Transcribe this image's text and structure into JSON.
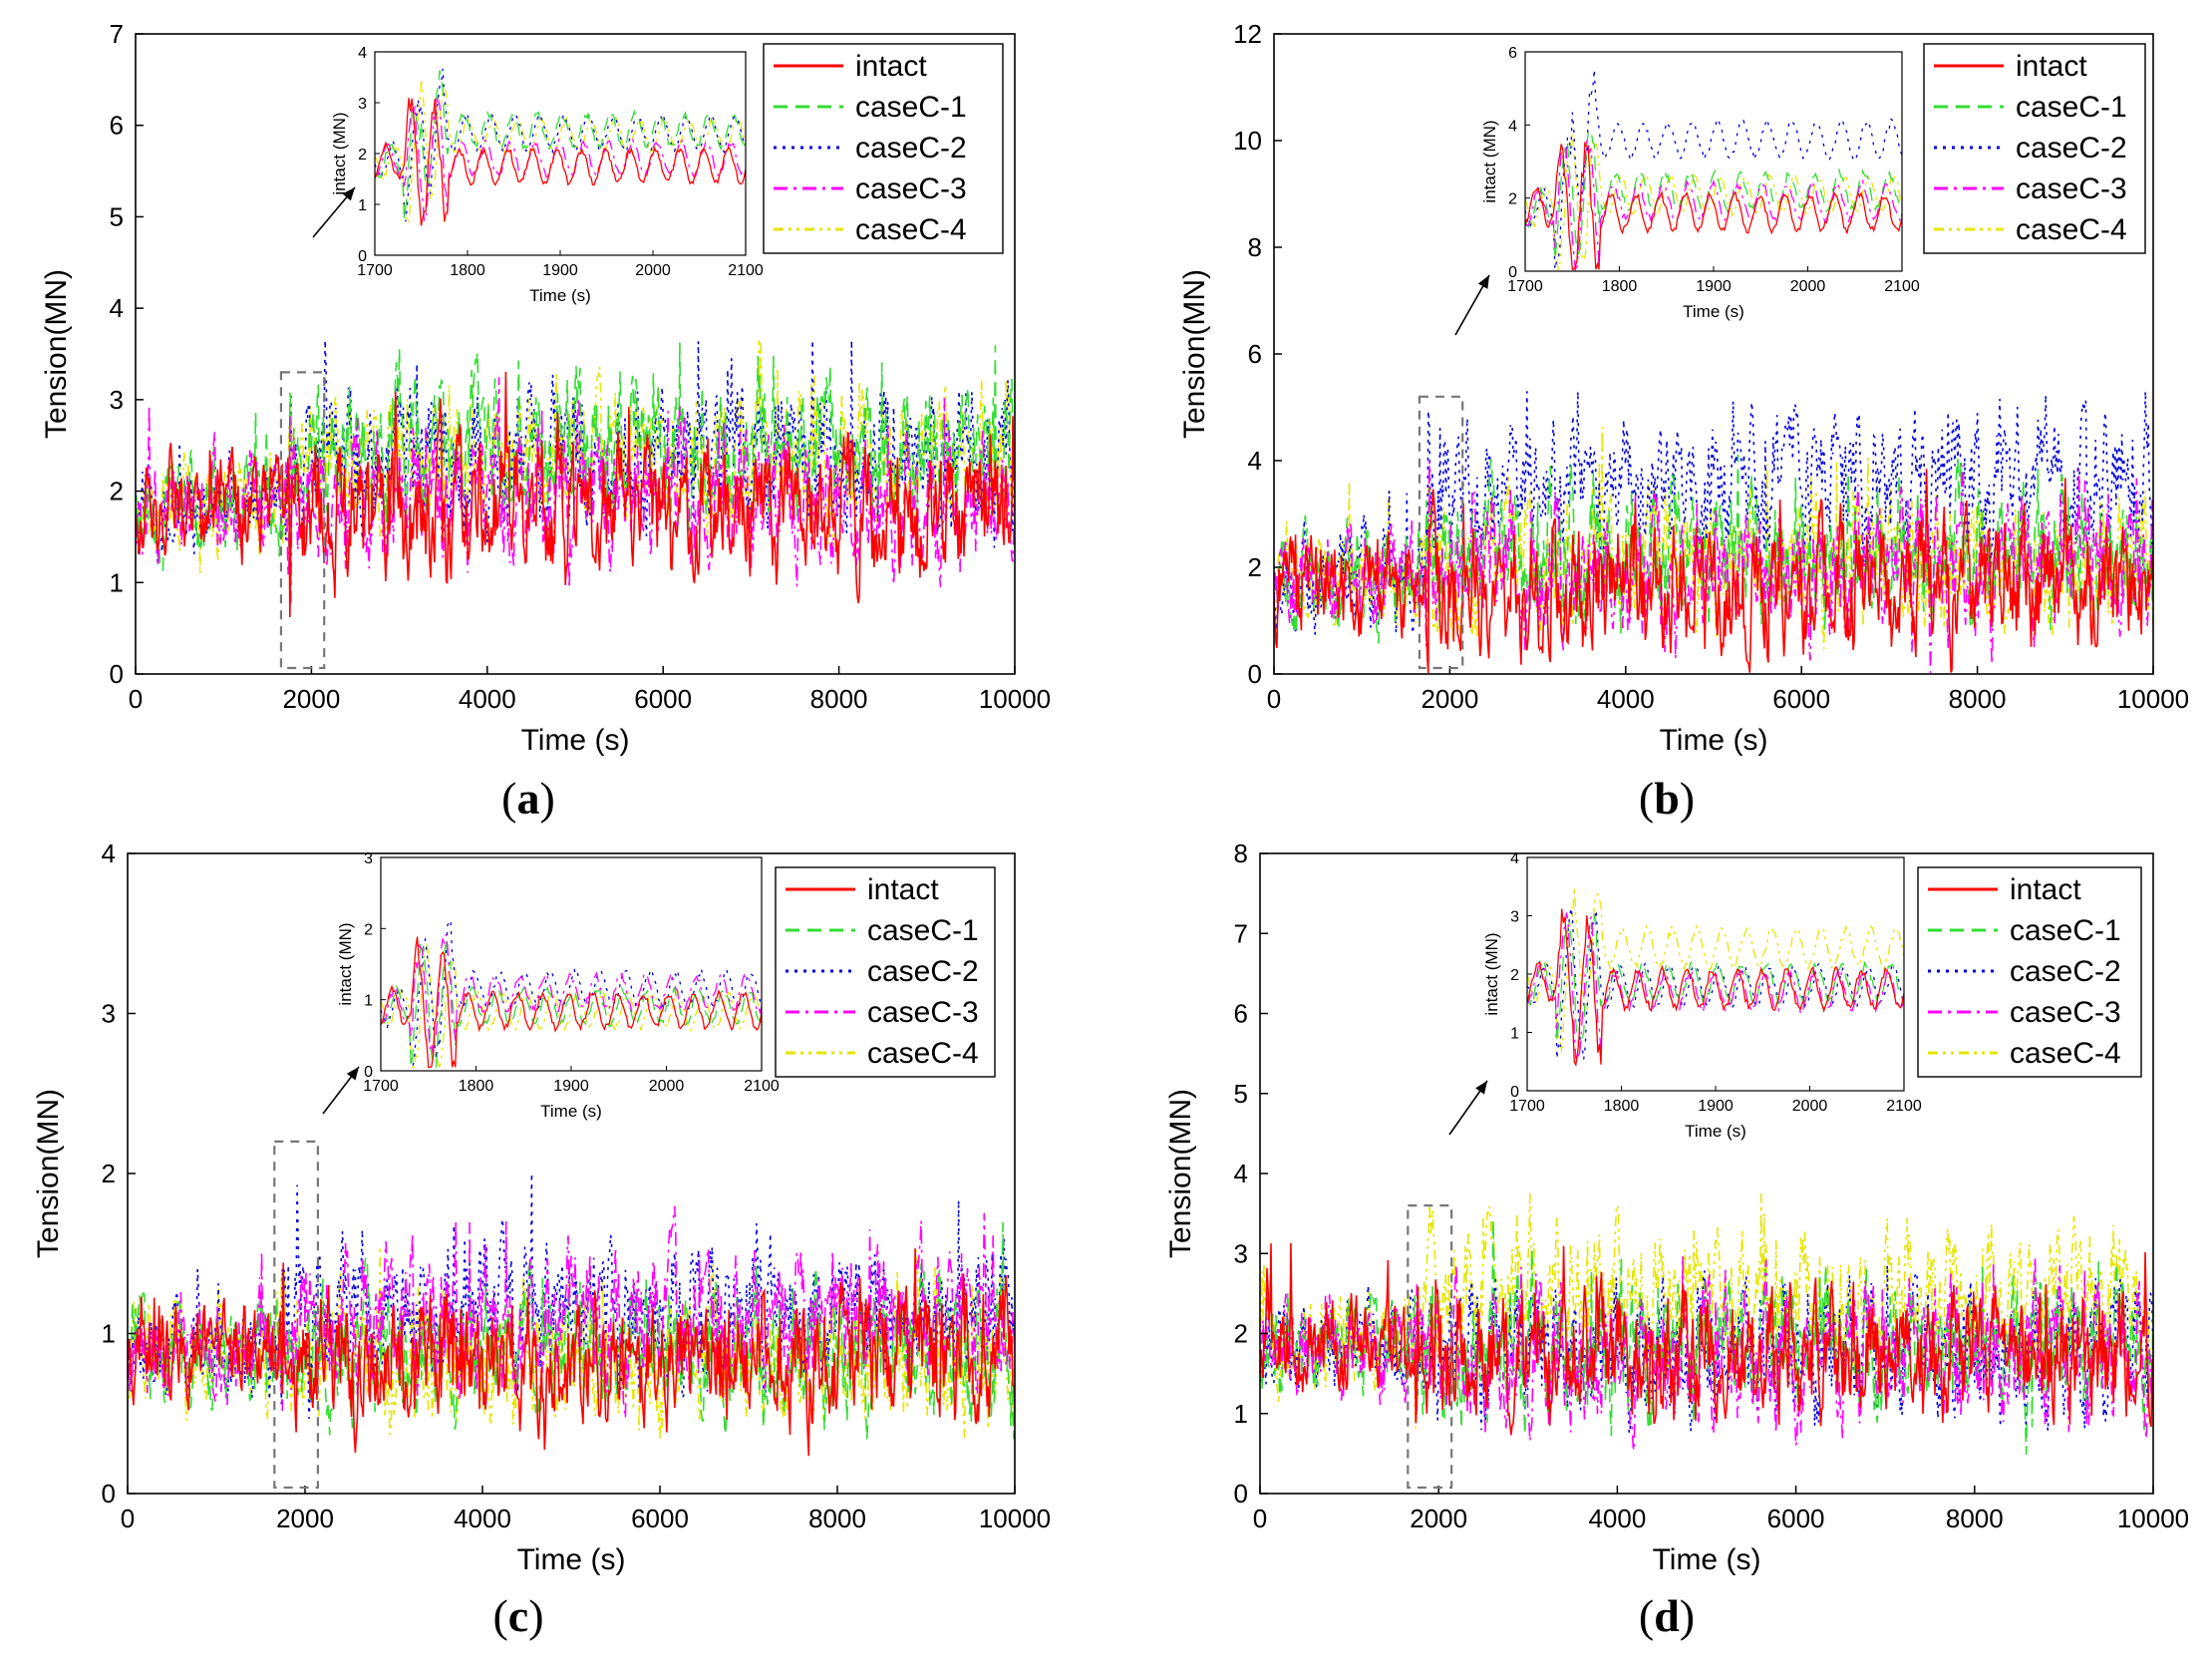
{
  "figure": {
    "series_styles": [
      {
        "name": "intact",
        "color": "#ff0000",
        "dash": ""
      },
      {
        "name": "caseC-1",
        "color": "#33dd33",
        "dash": "14,8"
      },
      {
        "name": "caseC-2",
        "color": "#0000dd",
        "dash": "3,6"
      },
      {
        "name": "caseC-3",
        "color": "#ff00ff",
        "dash": "14,6,3,6"
      },
      {
        "name": "caseC-4",
        "color": "#e6e600",
        "dash": "10,5,3,5,3,5"
      }
    ]
  },
  "chart_data": [
    {
      "id": "a",
      "caption_open": "(",
      "caption_letter": "a",
      "caption_close": ")",
      "type": "line",
      "xlabel": "Time (s)",
      "ylabel": "Tension(MN)",
      "xlim": [
        0,
        10000
      ],
      "ylim": [
        0,
        7
      ],
      "xticks": [
        0,
        2000,
        4000,
        6000,
        8000,
        10000
      ],
      "yticks": [
        0,
        1,
        2,
        3,
        4,
        5,
        6,
        7
      ],
      "legend": [
        "intact",
        "caseC-1",
        "caseC-2",
        "caseC-3",
        "caseC-4"
      ],
      "legend_position": "top-right",
      "grid": false,
      "break_time": 1750,
      "pre_break_mean": 1.85,
      "post_break_mean": {
        "intact": 1.75,
        "caseC-1": 2.45,
        "caseC-2": 2.4,
        "caseC-3": 1.9,
        "caseC-4": 2.35
      },
      "peak_max": 3.65,
      "inset": {
        "xlabel": "Time (s)",
        "ylabel": "intact (MN)",
        "xlim": [
          1700,
          2100
        ],
        "ylim": [
          0,
          4
        ],
        "xticks": [
          1700,
          1800,
          1900,
          2000,
          2100
        ],
        "yticks": [
          0,
          1,
          2,
          3,
          4
        ]
      }
    },
    {
      "id": "b",
      "caption_open": "(",
      "caption_letter": "b",
      "caption_close": ")",
      "type": "line",
      "xlabel": "Time (s)",
      "ylabel": "Tension(MN)",
      "xlim": [
        0,
        10000
      ],
      "ylim": [
        0,
        12
      ],
      "xticks": [
        0,
        2000,
        4000,
        6000,
        8000,
        10000
      ],
      "yticks": [
        0,
        2,
        4,
        6,
        8,
        10,
        12
      ],
      "legend": [
        "intact",
        "caseC-1",
        "caseC-2",
        "caseC-3",
        "caseC-4"
      ],
      "legend_position": "top-right",
      "grid": false,
      "break_time": 1750,
      "pre_break_mean": 1.75,
      "post_break_mean": {
        "intact": 1.6,
        "caseC-1": 2.2,
        "caseC-2": 3.6,
        "caseC-3": 1.9,
        "caseC-4": 2.1
      },
      "peak_max": 5.3,
      "inset": {
        "xlabel": "Time (s)",
        "ylabel": "intact (MN)",
        "xlim": [
          1700,
          2100
        ],
        "ylim": [
          0,
          6
        ],
        "xticks": [
          1700,
          1800,
          1900,
          2000,
          2100
        ],
        "yticks": [
          0,
          2,
          4,
          6
        ]
      }
    },
    {
      "id": "c",
      "caption_open": "(",
      "caption_letter": "c",
      "caption_close": ")",
      "type": "line",
      "xlabel": "Time (s)",
      "ylabel": "Tension(MN)",
      "xlim": [
        0,
        10000
      ],
      "ylim": [
        0,
        4
      ],
      "xticks": [
        0,
        2000,
        4000,
        6000,
        8000,
        10000
      ],
      "yticks": [
        0,
        1,
        2,
        3,
        4
      ],
      "legend": [
        "intact",
        "caseC-1",
        "caseC-2",
        "caseC-3",
        "caseC-4"
      ],
      "legend_position": "top-right",
      "grid": false,
      "break_time": 1750,
      "pre_break_mean": 0.9,
      "post_break_mean": {
        "intact": 0.85,
        "caseC-1": 0.9,
        "caseC-2": 1.15,
        "caseC-3": 1.1,
        "caseC-4": 0.85
      },
      "peak_max": 2.1,
      "inset": {
        "xlabel": "Time (s)",
        "ylabel": "intact (MN)",
        "xlim": [
          1700,
          2100
        ],
        "ylim": [
          0,
          3
        ],
        "xticks": [
          1700,
          1800,
          1900,
          2000,
          2100
        ],
        "yticks": [
          0,
          1,
          2,
          3
        ]
      }
    },
    {
      "id": "d",
      "caption_open": "(",
      "caption_letter": "d",
      "caption_close": ")",
      "type": "line",
      "xlabel": "Time (s)",
      "ylabel": "Tension(MN)",
      "xlim": [
        0,
        10000
      ],
      "ylim": [
        0,
        8
      ],
      "xticks": [
        0,
        2000,
        4000,
        6000,
        8000,
        10000
      ],
      "yticks": [
        0,
        1,
        2,
        3,
        4,
        5,
        6,
        7,
        8
      ],
      "legend": [
        "intact",
        "caseC-1",
        "caseC-2",
        "caseC-3",
        "caseC-4"
      ],
      "legend_position": "top-right",
      "grid": false,
      "break_time": 1750,
      "pre_break_mean": 1.85,
      "post_break_mean": {
        "intact": 1.75,
        "caseC-1": 1.85,
        "caseC-2": 1.8,
        "caseC-3": 1.7,
        "caseC-4": 2.45
      },
      "peak_max": 3.75,
      "inset": {
        "xlabel": "Time (s)",
        "ylabel": "intact (MN)",
        "xlim": [
          1700,
          2100
        ],
        "ylim": [
          0,
          4
        ],
        "xticks": [
          1700,
          1800,
          1900,
          2000,
          2100
        ],
        "yticks": [
          0,
          1,
          2,
          3,
          4
        ]
      }
    }
  ]
}
